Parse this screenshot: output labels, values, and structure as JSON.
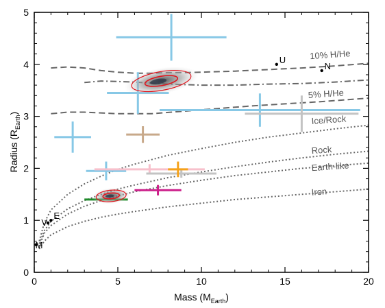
{
  "chart_data": {
    "type": "scatter",
    "xlabel": "Mass (M",
    "xlabel_sub": "Earth",
    "xlabel_end": ")",
    "ylabel": "Radius (R",
    "ylabel_sub": "Earth",
    "ylabel_end": ")",
    "xlim": [
      0,
      20
    ],
    "ylim": [
      0,
      5
    ],
    "xticks": [
      0,
      5,
      10,
      15,
      20
    ],
    "yticks": [
      0,
      1,
      2,
      3,
      4,
      5
    ],
    "grid": false,
    "models": [
      {
        "label": "10% H/He",
        "style": "dashed",
        "color": "#666666",
        "label_at": [
          16.5,
          4.1
        ],
        "points": [
          [
            1,
            3.93
          ],
          [
            2,
            3.95
          ],
          [
            3,
            3.93
          ],
          [
            4,
            3.88
          ],
          [
            5,
            3.85
          ],
          [
            6,
            3.83
          ],
          [
            7,
            3.83
          ],
          [
            8,
            3.84
          ],
          [
            9,
            3.84
          ],
          [
            10,
            3.85
          ],
          [
            12,
            3.87
          ],
          [
            14,
            3.9
          ],
          [
            16,
            3.93
          ],
          [
            18,
            3.97
          ],
          [
            20,
            4.02
          ]
        ]
      },
      {
        "label": "",
        "style": "dashdot",
        "color": "#666666",
        "label_at": null,
        "points": [
          [
            3,
            3.65
          ],
          [
            4,
            3.68
          ],
          [
            6,
            3.66
          ],
          [
            8,
            3.62
          ],
          [
            10,
            3.6
          ],
          [
            12,
            3.6
          ],
          [
            14,
            3.62
          ],
          [
            16,
            3.63
          ],
          [
            18,
            3.66
          ],
          [
            20,
            3.7
          ]
        ]
      },
      {
        "label": "5% H/He",
        "style": "dashed",
        "color": "#666666",
        "label_at": [
          16.4,
          3.35
        ],
        "points": [
          [
            1,
            3.05
          ],
          [
            2,
            3.08
          ],
          [
            3,
            3.08
          ],
          [
            5,
            3.05
          ],
          [
            7,
            3.05
          ],
          [
            9,
            3.1
          ],
          [
            11,
            3.15
          ],
          [
            13,
            3.2
          ],
          [
            15,
            3.24
          ],
          [
            17,
            3.28
          ],
          [
            20,
            3.35
          ]
        ]
      },
      {
        "label": "Ice/Rock",
        "style": "dotted",
        "color": "#666666",
        "label_at": [
          16.6,
          2.85
        ],
        "points": [
          [
            0.3,
            0.6
          ],
          [
            0.6,
            0.95
          ],
          [
            1,
            1.2
          ],
          [
            2,
            1.5
          ],
          [
            3,
            1.7
          ],
          [
            4,
            1.85
          ],
          [
            5,
            1.98
          ],
          [
            6,
            2.08
          ],
          [
            8,
            2.25
          ],
          [
            10,
            2.38
          ],
          [
            12,
            2.5
          ],
          [
            14,
            2.6
          ],
          [
            16,
            2.68
          ],
          [
            18,
            2.76
          ],
          [
            20,
            2.83
          ]
        ]
      },
      {
        "label": "Rock",
        "style": "dotted",
        "color": "#666666",
        "label_at": [
          16.6,
          2.28
        ],
        "points": [
          [
            0.3,
            0.55
          ],
          [
            0.6,
            0.8
          ],
          [
            1,
            0.98
          ],
          [
            2,
            1.22
          ],
          [
            3,
            1.38
          ],
          [
            4,
            1.5
          ],
          [
            5,
            1.6
          ],
          [
            6,
            1.68
          ],
          [
            8,
            1.82
          ],
          [
            10,
            1.93
          ],
          [
            12,
            2.03
          ],
          [
            14,
            2.12
          ],
          [
            16,
            2.2
          ],
          [
            18,
            2.27
          ],
          [
            20,
            2.33
          ]
        ]
      },
      {
        "label": "Earth-like",
        "style": "dotted",
        "color": "#666666",
        "label_at": [
          16.6,
          1.95
        ],
        "points": [
          [
            0.3,
            0.5
          ],
          [
            0.6,
            0.75
          ],
          [
            1,
            0.9
          ],
          [
            2,
            1.12
          ],
          [
            3,
            1.27
          ],
          [
            4,
            1.38
          ],
          [
            5,
            1.47
          ],
          [
            6,
            1.55
          ],
          [
            8,
            1.67
          ],
          [
            10,
            1.77
          ],
          [
            12,
            1.86
          ],
          [
            14,
            1.93
          ],
          [
            16,
            2.0
          ],
          [
            18,
            2.05
          ],
          [
            20,
            2.1
          ]
        ]
      },
      {
        "label": "Iron",
        "style": "dotted",
        "color": "#666666",
        "label_at": [
          16.6,
          1.48
        ],
        "points": [
          [
            0.3,
            0.45
          ],
          [
            0.6,
            0.6
          ],
          [
            1,
            0.72
          ],
          [
            2,
            0.88
          ],
          [
            3,
            0.98
          ],
          [
            4,
            1.06
          ],
          [
            5,
            1.12
          ],
          [
            6,
            1.17
          ],
          [
            8,
            1.26
          ],
          [
            10,
            1.33
          ],
          [
            12,
            1.4
          ],
          [
            14,
            1.45
          ],
          [
            16,
            1.5
          ],
          [
            18,
            1.55
          ],
          [
            20,
            1.6
          ]
        ]
      }
    ],
    "points": [
      {
        "x": 8.2,
        "y": 4.52,
        "xerr": 3.3,
        "yerr": 0.45,
        "color": "#87c8e6"
      },
      {
        "x": 6.2,
        "y": 3.45,
        "xerr": 1.85,
        "yerr": 0.4,
        "color": "#87c8e6"
      },
      {
        "x": 13.5,
        "y": 3.12,
        "xerr": 6.0,
        "yerr": 0.32,
        "color": "#87c8e6"
      },
      {
        "x": 2.3,
        "y": 2.6,
        "xerr": 1.1,
        "yerr": 0.3,
        "color": "#87c8e6"
      },
      {
        "x": 4.3,
        "y": 1.95,
        "xerr": 1.2,
        "yerr": 0.18,
        "color": "#87c8e6"
      },
      {
        "x": 6.5,
        "y": 2.65,
        "xerr": 1.0,
        "yerr": 0.16,
        "color": "#c8a98a"
      },
      {
        "x": 16.0,
        "y": 3.05,
        "xerr": 3.4,
        "yerr": 0.35,
        "color": "#c3c3c3"
      },
      {
        "x": 6.9,
        "y": 1.98,
        "xerr": 3.3,
        "yerr": 0.1,
        "color": "#f7c0cc"
      },
      {
        "x": 8.8,
        "y": 1.9,
        "xerr": 2.1,
        "yerr": 0.08,
        "color": "#c3c3c3"
      },
      {
        "x": 8.6,
        "y": 1.98,
        "xerr": 0.6,
        "yerr": 0.15,
        "color": "#f5a21a"
      },
      {
        "x": 7.4,
        "y": 1.58,
        "xerr": 1.4,
        "yerr": 0.1,
        "color": "#cc1f8a"
      },
      {
        "x": 4.3,
        "y": 1.4,
        "xerr": 1.3,
        "yerr": 0.0,
        "color": "#1f8a2a"
      }
    ],
    "contours": [
      {
        "x": 7.6,
        "y": 3.68,
        "rx": 1.8,
        "ry": 0.18,
        "angle": -10
      },
      {
        "x": 4.6,
        "y": 1.47,
        "rx": 0.9,
        "ry": 0.11,
        "angle": -5
      }
    ],
    "planets": [
      {
        "label": "U",
        "x": 14.5,
        "y": 4.0
      },
      {
        "label": "N",
        "x": 17.2,
        "y": 3.88
      },
      {
        "label": "V",
        "x": 0.82,
        "y": 0.95
      },
      {
        "label": "E",
        "x": 1.0,
        "y": 1.0
      },
      {
        "label": "M",
        "x": 0.11,
        "y": 0.53
      }
    ]
  }
}
